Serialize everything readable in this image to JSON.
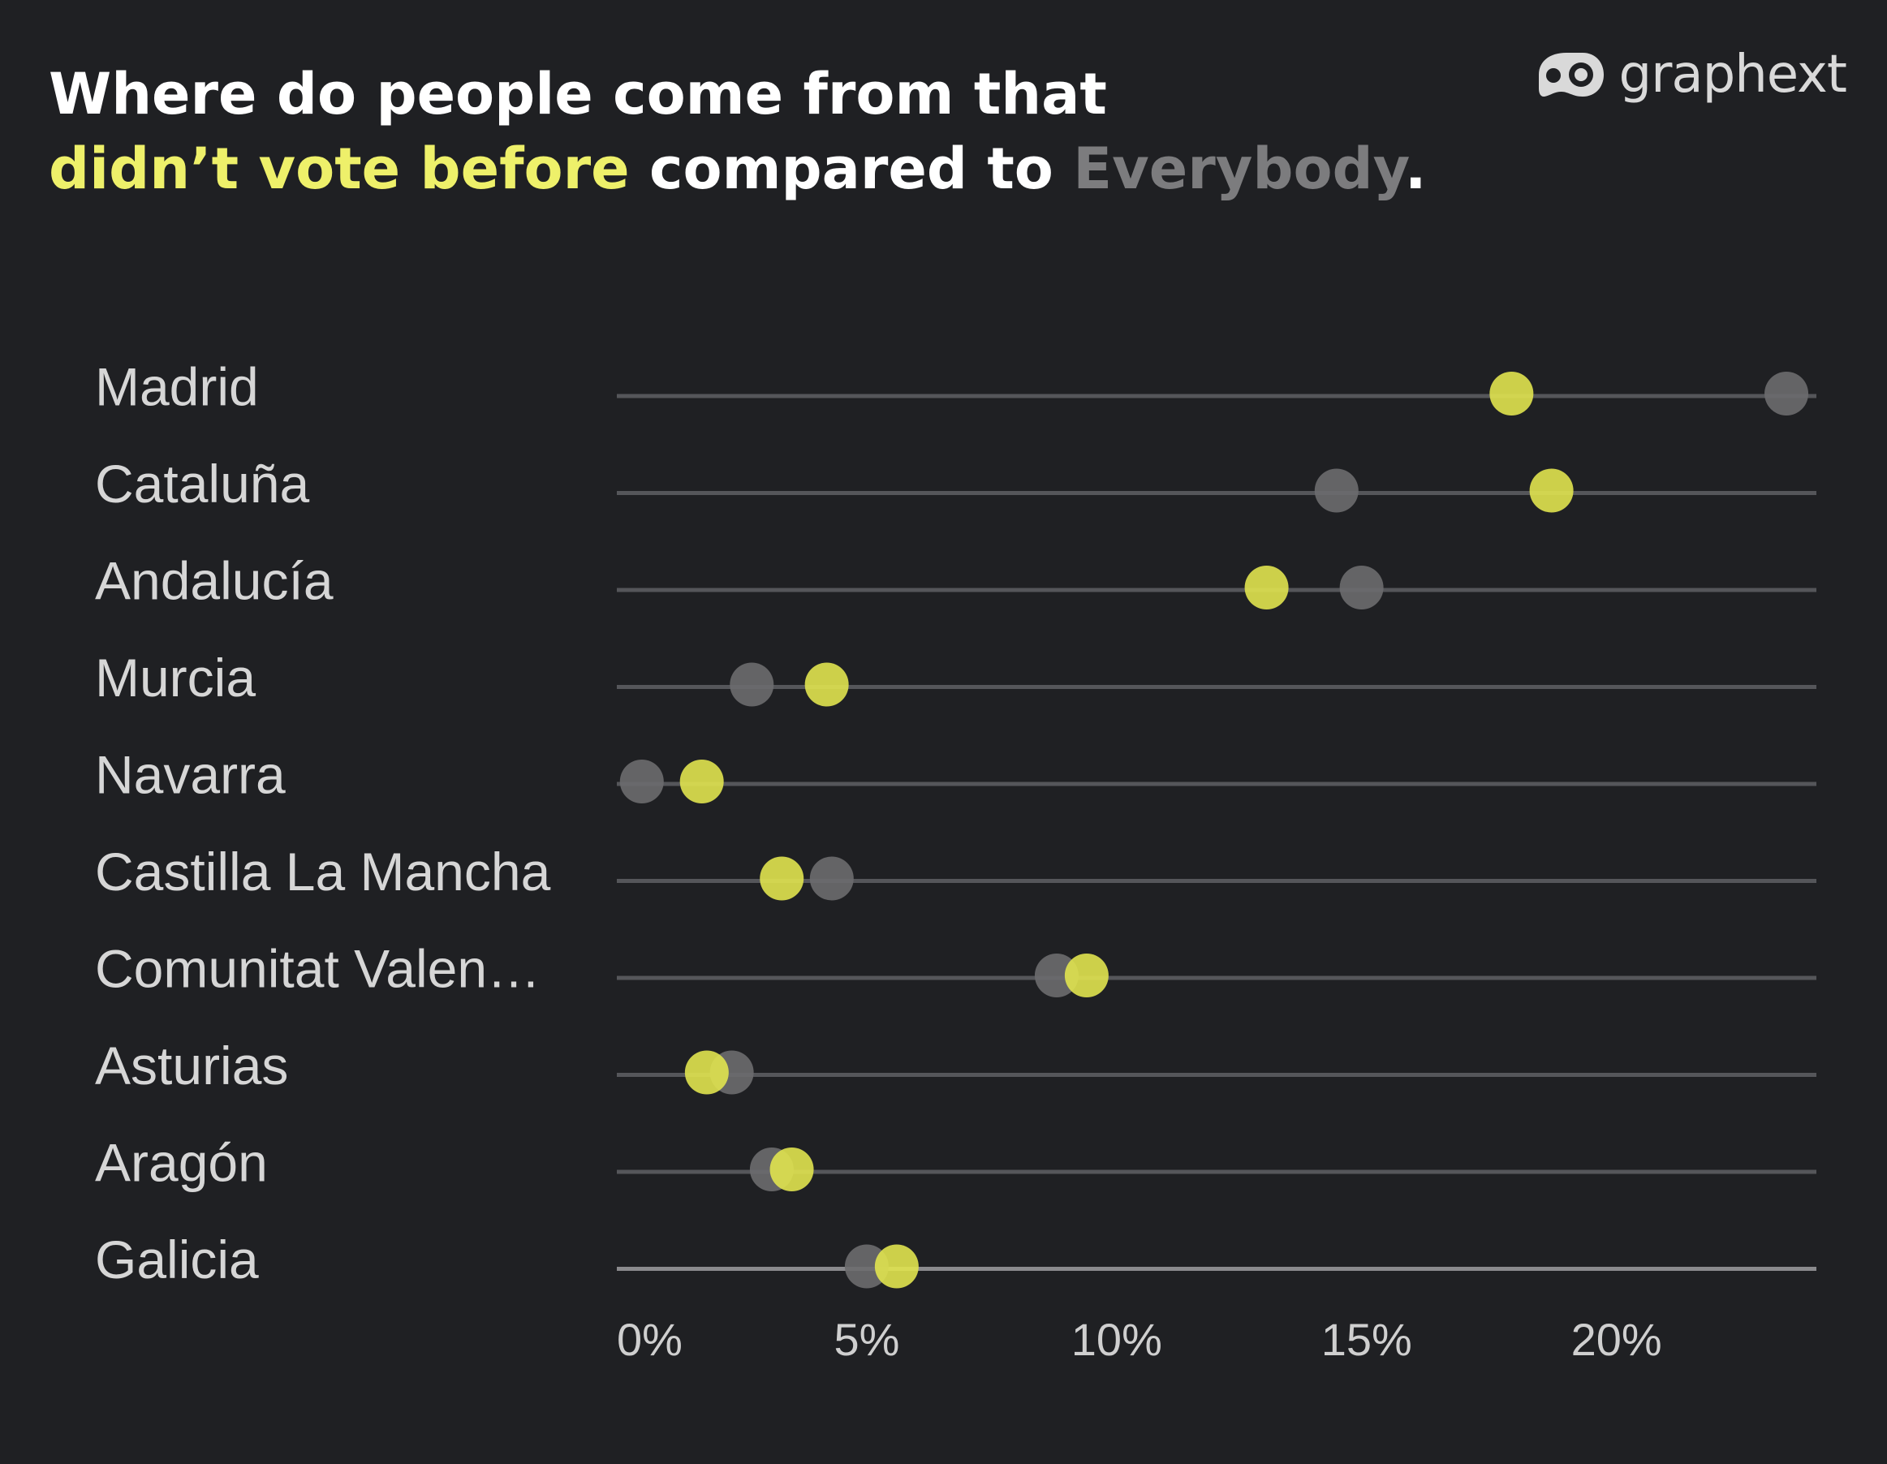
{
  "title": {
    "line1": "Where do people come from that",
    "highlight": "didn’t vote before",
    "middle": " compared to ",
    "everybody": "Everybody",
    "end": "."
  },
  "brand": {
    "name": "graphext",
    "icon": "graphext-logo-icon"
  },
  "colors": {
    "background": "#1f2023",
    "new_voters": "#e0e34f",
    "everybody": "#6b6b6e",
    "line": "#55565a"
  },
  "chart_data": {
    "type": "scatter",
    "subtype": "dot-plot",
    "categories": [
      "Madrid",
      "Cataluña",
      "Andalucía",
      "Murcia",
      "Navarra",
      "Castilla La Mancha",
      "Comunitat Valen…",
      "Asturias",
      "Aragón",
      "Galicia"
    ],
    "series": [
      {
        "name": "didn’t vote before",
        "color": "#e0e34f",
        "values": [
          17.9,
          18.7,
          13.0,
          4.2,
          1.7,
          3.3,
          9.4,
          1.8,
          3.5,
          5.6
        ]
      },
      {
        "name": "Everybody",
        "color": "#6b6b6e",
        "values": [
          23.4,
          14.4,
          14.9,
          2.7,
          0.5,
          4.3,
          8.8,
          2.3,
          3.1,
          5.0
        ]
      }
    ],
    "x_ticks": [
      "0%",
      "5%",
      "10%",
      "15%",
      "20%"
    ],
    "x_tick_values": [
      0,
      5,
      10,
      15,
      20
    ],
    "xlim": [
      0,
      24
    ],
    "xlabel": "",
    "ylabel": ""
  }
}
